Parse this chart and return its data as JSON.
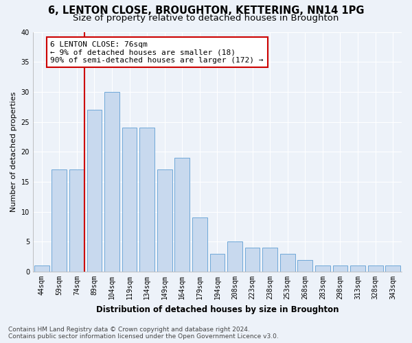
{
  "title": "6, LENTON CLOSE, BROUGHTON, KETTERING, NN14 1PG",
  "subtitle": "Size of property relative to detached houses in Broughton",
  "xlabel": "Distribution of detached houses by size in Broughton",
  "ylabel": "Number of detached properties",
  "categories": [
    "44sqm",
    "59sqm",
    "74sqm",
    "89sqm",
    "104sqm",
    "119sqm",
    "134sqm",
    "149sqm",
    "164sqm",
    "179sqm",
    "194sqm",
    "208sqm",
    "223sqm",
    "238sqm",
    "253sqm",
    "268sqm",
    "283sqm",
    "298sqm",
    "313sqm",
    "328sqm",
    "343sqm"
  ],
  "values": [
    1,
    17,
    17,
    27,
    30,
    24,
    24,
    17,
    19,
    9,
    3,
    5,
    4,
    4,
    3,
    2,
    1,
    1,
    1,
    1,
    1
  ],
  "bar_color": "#c8d9ee",
  "bar_edge_color": "#6fa8d8",
  "highlight_line_index": 2,
  "annotation_title": "6 LENTON CLOSE: 76sqm",
  "annotation_line1": "← 9% of detached houses are smaller (18)",
  "annotation_line2": "90% of semi-detached houses are larger (172) →",
  "annotation_box_color": "#ffffff",
  "annotation_border_color": "#cc0000",
  "vline_color": "#cc0000",
  "ylim": [
    0,
    40
  ],
  "yticks": [
    0,
    5,
    10,
    15,
    20,
    25,
    30,
    35,
    40
  ],
  "footer_line1": "Contains HM Land Registry data © Crown copyright and database right 2024.",
  "footer_line2": "Contains public sector information licensed under the Open Government Licence v3.0.",
  "background_color": "#edf2f9",
  "plot_background": "#edf2f9",
  "title_fontsize": 10.5,
  "subtitle_fontsize": 9.5,
  "annotation_fontsize": 8,
  "tick_fontsize": 7,
  "ylabel_fontsize": 8,
  "xlabel_fontsize": 8.5,
  "footer_fontsize": 6.5,
  "grid_color": "#ffffff",
  "spine_color": "#aaaaaa"
}
